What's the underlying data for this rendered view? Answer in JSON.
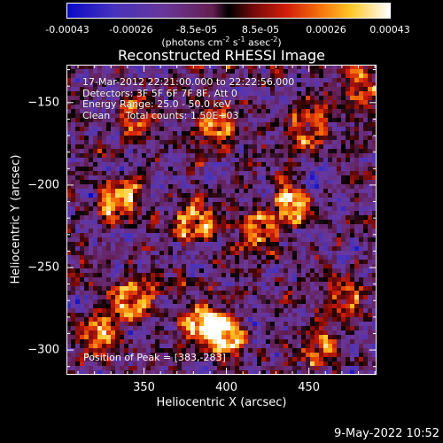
{
  "colorbar": {
    "ticks": [
      "-0.00043",
      "-0.00026",
      "-8.5e-05",
      "8.5e-05",
      "0.00026",
      "0.00043"
    ],
    "tick_values": [
      -0.00043,
      -0.00026,
      -8.5e-05,
      8.5e-05,
      0.00026,
      0.00043
    ],
    "units_text": "(photons cm",
    "units_sup1": "-2",
    "units_mid1": " s",
    "units_sup2": "-1",
    "units_mid2": " asec",
    "units_sup3": "-2",
    "units_end": ")"
  },
  "title": "Reconstructed RHESSI Image",
  "annotations": {
    "line1": "17-Mar-2012 22:21:00.000 to 22:22:56.000",
    "line2": "Detectors: 3F 5F 6F 7F 8F, Att 0",
    "line3": "Energy Range: 25.0 - 50.0 keV",
    "line4": "Clean     Total counts: 1.50E+03",
    "peak": "Position of Peak = [383,-283]"
  },
  "axes": {
    "xlabel": "Heliocentric X (arcsec)",
    "ylabel": "Heliocentric Y (arcsec)"
  },
  "date_stamp": "9-May-2022 10:52",
  "chart_data": {
    "type": "heatmap",
    "title": "Reconstructed RHESSI Image",
    "xlabel": "Heliocentric X (arcsec)",
    "ylabel": "Heliocentric Y (arcsec)",
    "xlim": [
      303,
      491
    ],
    "ylim": [
      -315,
      -127
    ],
    "x_ticks": [
      350,
      400,
      450
    ],
    "x_tick_labels": [
      "350",
      "400",
      "450"
    ],
    "y_ticks": [
      -150,
      -200,
      -250,
      -300
    ],
    "y_tick_labels": [
      "−150",
      "−200",
      "−250",
      "−300"
    ],
    "zlim": [
      -0.00043,
      0.00043
    ],
    "colormap": "red-temperature",
    "bright_sources": [
      {
        "x": 383,
        "y": -283,
        "label": "peak"
      },
      {
        "x": 380,
        "y": -222
      },
      {
        "x": 335,
        "y": -210
      },
      {
        "x": 342,
        "y": -270
      },
      {
        "x": 400,
        "y": -290
      },
      {
        "x": 440,
        "y": -212
      },
      {
        "x": 420,
        "y": -225
      },
      {
        "x": 395,
        "y": -165
      },
      {
        "x": 450,
        "y": -165
      },
      {
        "x": 480,
        "y": -140
      },
      {
        "x": 345,
        "y": -160
      },
      {
        "x": 470,
        "y": -270
      },
      {
        "x": 455,
        "y": -298
      },
      {
        "x": 320,
        "y": -290
      }
    ],
    "peak": {
      "x": 383,
      "y": -283
    }
  },
  "colors": {
    "background": "#000000",
    "foreground": "#ffffff"
  }
}
